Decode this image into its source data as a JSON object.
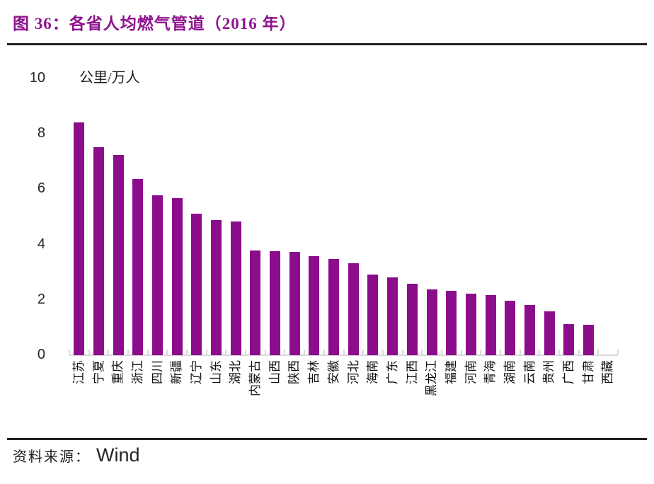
{
  "figure": {
    "title": "图 36：各省人均燃气管道（2016 年）",
    "source_label": "资料来源：",
    "source_value": "Wind"
  },
  "colors": {
    "title": "#8E128E",
    "bar": "#8C0D8C",
    "axis": "#D9D9D9",
    "rule": "#212121"
  },
  "chart_data": {
    "type": "bar",
    "title": "各省人均燃气管道（2016 年）",
    "unit_label": "公里/万人",
    "xlabel": "",
    "ylabel": "公里/万人",
    "ylim": [
      0,
      10
    ],
    "yticks": [
      0,
      2,
      4,
      6,
      8,
      10
    ],
    "grid": false,
    "legend": false,
    "categories": [
      "江苏",
      "宁夏",
      "重庆",
      "浙江",
      "四川",
      "新疆",
      "辽宁",
      "山东",
      "湖北",
      "内蒙古",
      "山西",
      "陕西",
      "吉林",
      "安徽",
      "河北",
      "海南",
      "广东",
      "江西",
      "黑龙江",
      "福建",
      "河南",
      "青海",
      "湖南",
      "云南",
      "贵州",
      "广西",
      "甘肃",
      "西藏"
    ],
    "values": [
      8.4,
      7.5,
      7.2,
      6.35,
      5.75,
      5.65,
      5.1,
      4.85,
      4.8,
      3.76,
      3.74,
      3.72,
      3.56,
      3.45,
      3.3,
      2.9,
      2.8,
      2.55,
      2.35,
      2.3,
      2.2,
      2.15,
      1.95,
      1.8,
      1.55,
      1.1,
      1.08,
      0
    ]
  }
}
